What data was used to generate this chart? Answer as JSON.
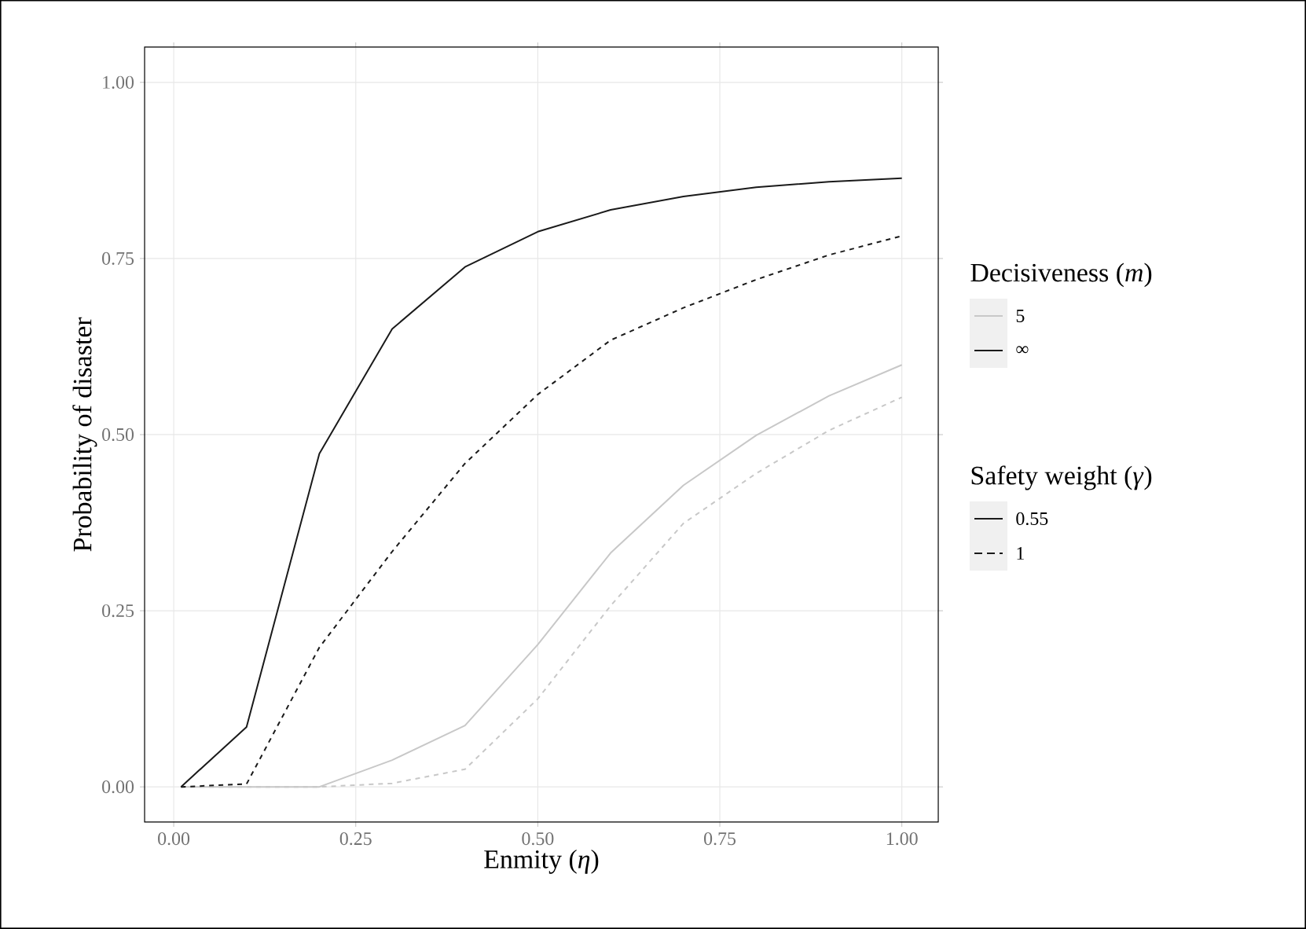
{
  "chart_data": {
    "type": "line",
    "xlabel": "Enmity (*η*)",
    "ylabel": "Probability of disaster",
    "legend_title": "Decisiveness (*m*)",
    "annotations": [
      "5",
      "∞",
      "Safety weight (*γ*)",
      "0.55",
      "1"
    ],
    "x": [
      0.01,
      0.1,
      0.2,
      0.3,
      0.4,
      0.5,
      0.6,
      0.7,
      0.8,
      0.9,
      1.0
    ],
    "series": [
      {
        "color": "#c8c8c8",
        "line_style": "solid",
        "values": [
          0,
          0,
          0,
          0.038,
          0.087,
          0.202,
          0.332,
          0.428,
          0.499,
          0.555,
          0.599
        ]
      },
      {
        "color": "#c8c8c8",
        "line_style": "dashed",
        "values": [
          0,
          0,
          0,
          0.005,
          0.025,
          0.125,
          0.257,
          0.374,
          0.445,
          0.506,
          0.553
        ]
      },
      {
        "color": "#1a1a1a",
        "line_style": "solid",
        "values": [
          0,
          0.085,
          0.473,
          0.65,
          0.738,
          0.788,
          0.819,
          0.838,
          0.851,
          0.859,
          0.864
        ]
      },
      {
        "color": "#1a1a1a",
        "line_style": "dashed",
        "values": [
          0,
          0.004,
          0.198,
          0.334,
          0.459,
          0.557,
          0.634,
          0.68,
          0.72,
          0.755,
          0.782
        ]
      }
    ],
    "xlim": [
      -0.04,
      1.05
    ],
    "ylim": [
      -0.05,
      1.05
    ],
    "xticks": [
      {
        "value": 0,
        "label": "0.00"
      },
      0.25,
      {
        "value": 0.5,
        "label": "0.50"
      },
      0.75,
      {
        "value": 1,
        "label": "1.00"
      }
    ],
    "yticks": [
      {
        "value": 0,
        "label": "0.00"
      },
      0.25,
      {
        "value": 0.5,
        "label": "0.50"
      },
      0.75,
      {
        "value": 1,
        "label": "1.00"
      }
    ],
    "grid": true,
    "marker": "none"
  }
}
